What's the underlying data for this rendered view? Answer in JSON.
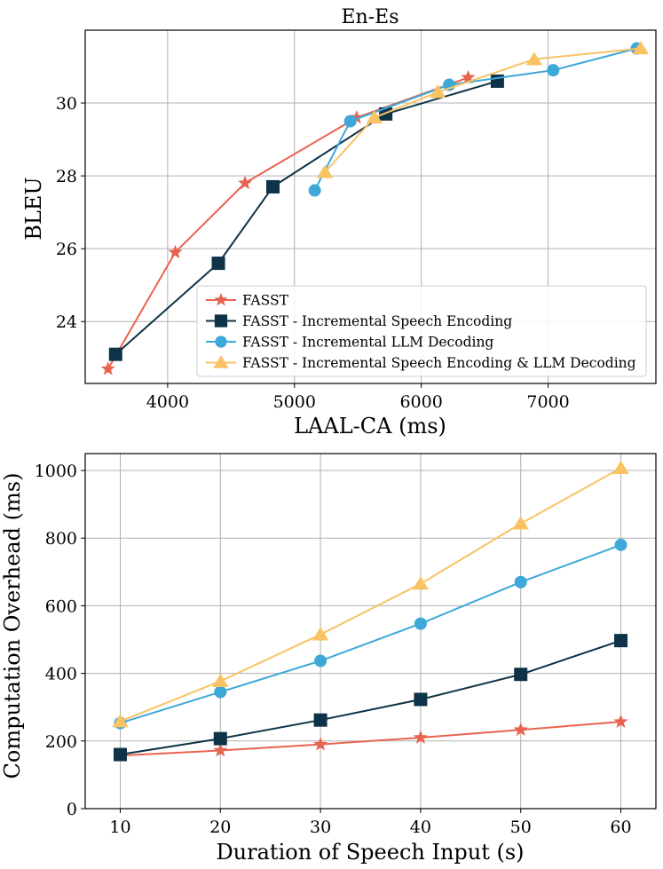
{
  "colors": {
    "fasst": "#e8634f",
    "ise": "#0e3247",
    "ild": "#3ea8d8",
    "ise_ild": "#f9c263",
    "grid": "#b0b0b0",
    "axis": "#000000"
  },
  "chart_data": [
    {
      "type": "line",
      "title": "En-Es",
      "xlabel": "LAAL-CA (ms)",
      "ylabel": "BLEU",
      "xlim": [
        3350,
        7850
      ],
      "ylim": [
        22.3,
        32.0
      ],
      "xticks": [
        4000,
        5000,
        6000,
        7000
      ],
      "yticks": [
        24,
        26,
        28,
        30
      ],
      "grid": true,
      "legend_position": "lower-right",
      "series": [
        {
          "name": "FASST",
          "marker": "star",
          "color_key": "fasst",
          "x": [
            3530,
            4060,
            4610,
            5490,
            6370
          ],
          "y": [
            22.7,
            25.9,
            27.8,
            29.6,
            30.7
          ]
        },
        {
          "name": "FASST - Incremental Speech Encoding",
          "marker": "square",
          "color_key": "ise",
          "x": [
            3590,
            4400,
            4830,
            5720,
            6600
          ],
          "y": [
            23.1,
            25.6,
            27.7,
            29.7,
            30.6
          ]
        },
        {
          "name": "FASST - Incremental LLM Decoding",
          "marker": "circle",
          "color_key": "ild",
          "x": [
            5160,
            5440,
            6220,
            7040,
            7700
          ],
          "y": [
            27.6,
            29.5,
            30.5,
            30.9,
            31.5
          ]
        },
        {
          "name": "FASST - Incremental Speech Encoding & LLM Decoding",
          "marker": "triangle",
          "color_key": "ise_ild",
          "x": [
            5240,
            5630,
            6130,
            6890,
            7730
          ],
          "y": [
            28.1,
            29.6,
            30.3,
            31.2,
            31.5
          ]
        }
      ]
    },
    {
      "type": "line",
      "title": "",
      "xlabel": "Duration of Speech Input (s)",
      "ylabel": "Computation Overhead (ms)",
      "xlim": [
        6.5,
        63.5
      ],
      "ylim": [
        0,
        1050
      ],
      "xticks": [
        10,
        20,
        30,
        40,
        50,
        60
      ],
      "yticks": [
        0,
        200,
        400,
        600,
        800,
        1000
      ],
      "grid": true,
      "series": [
        {
          "name": "FASST",
          "marker": "star",
          "color_key": "fasst",
          "x": [
            10,
            20,
            30,
            40,
            50,
            60
          ],
          "y": [
            157,
            172,
            190,
            210,
            233,
            257
          ]
        },
        {
          "name": "FASST - Incremental Speech Encoding",
          "marker": "square",
          "color_key": "ise",
          "x": [
            10,
            20,
            30,
            40,
            50,
            60
          ],
          "y": [
            160,
            207,
            262,
            323,
            397,
            497
          ]
        },
        {
          "name": "FASST - Incremental LLM Decoding",
          "marker": "circle",
          "color_key": "ild",
          "x": [
            10,
            20,
            30,
            40,
            50,
            60
          ],
          "y": [
            253,
            345,
            437,
            547,
            670,
            780
          ]
        },
        {
          "name": "FASST - Incremental Speech Encoding & LLM Decoding",
          "marker": "triangle",
          "color_key": "ise_ild",
          "x": [
            10,
            20,
            30,
            40,
            50,
            60
          ],
          "y": [
            258,
            377,
            515,
            665,
            843,
            1007
          ]
        }
      ]
    }
  ]
}
